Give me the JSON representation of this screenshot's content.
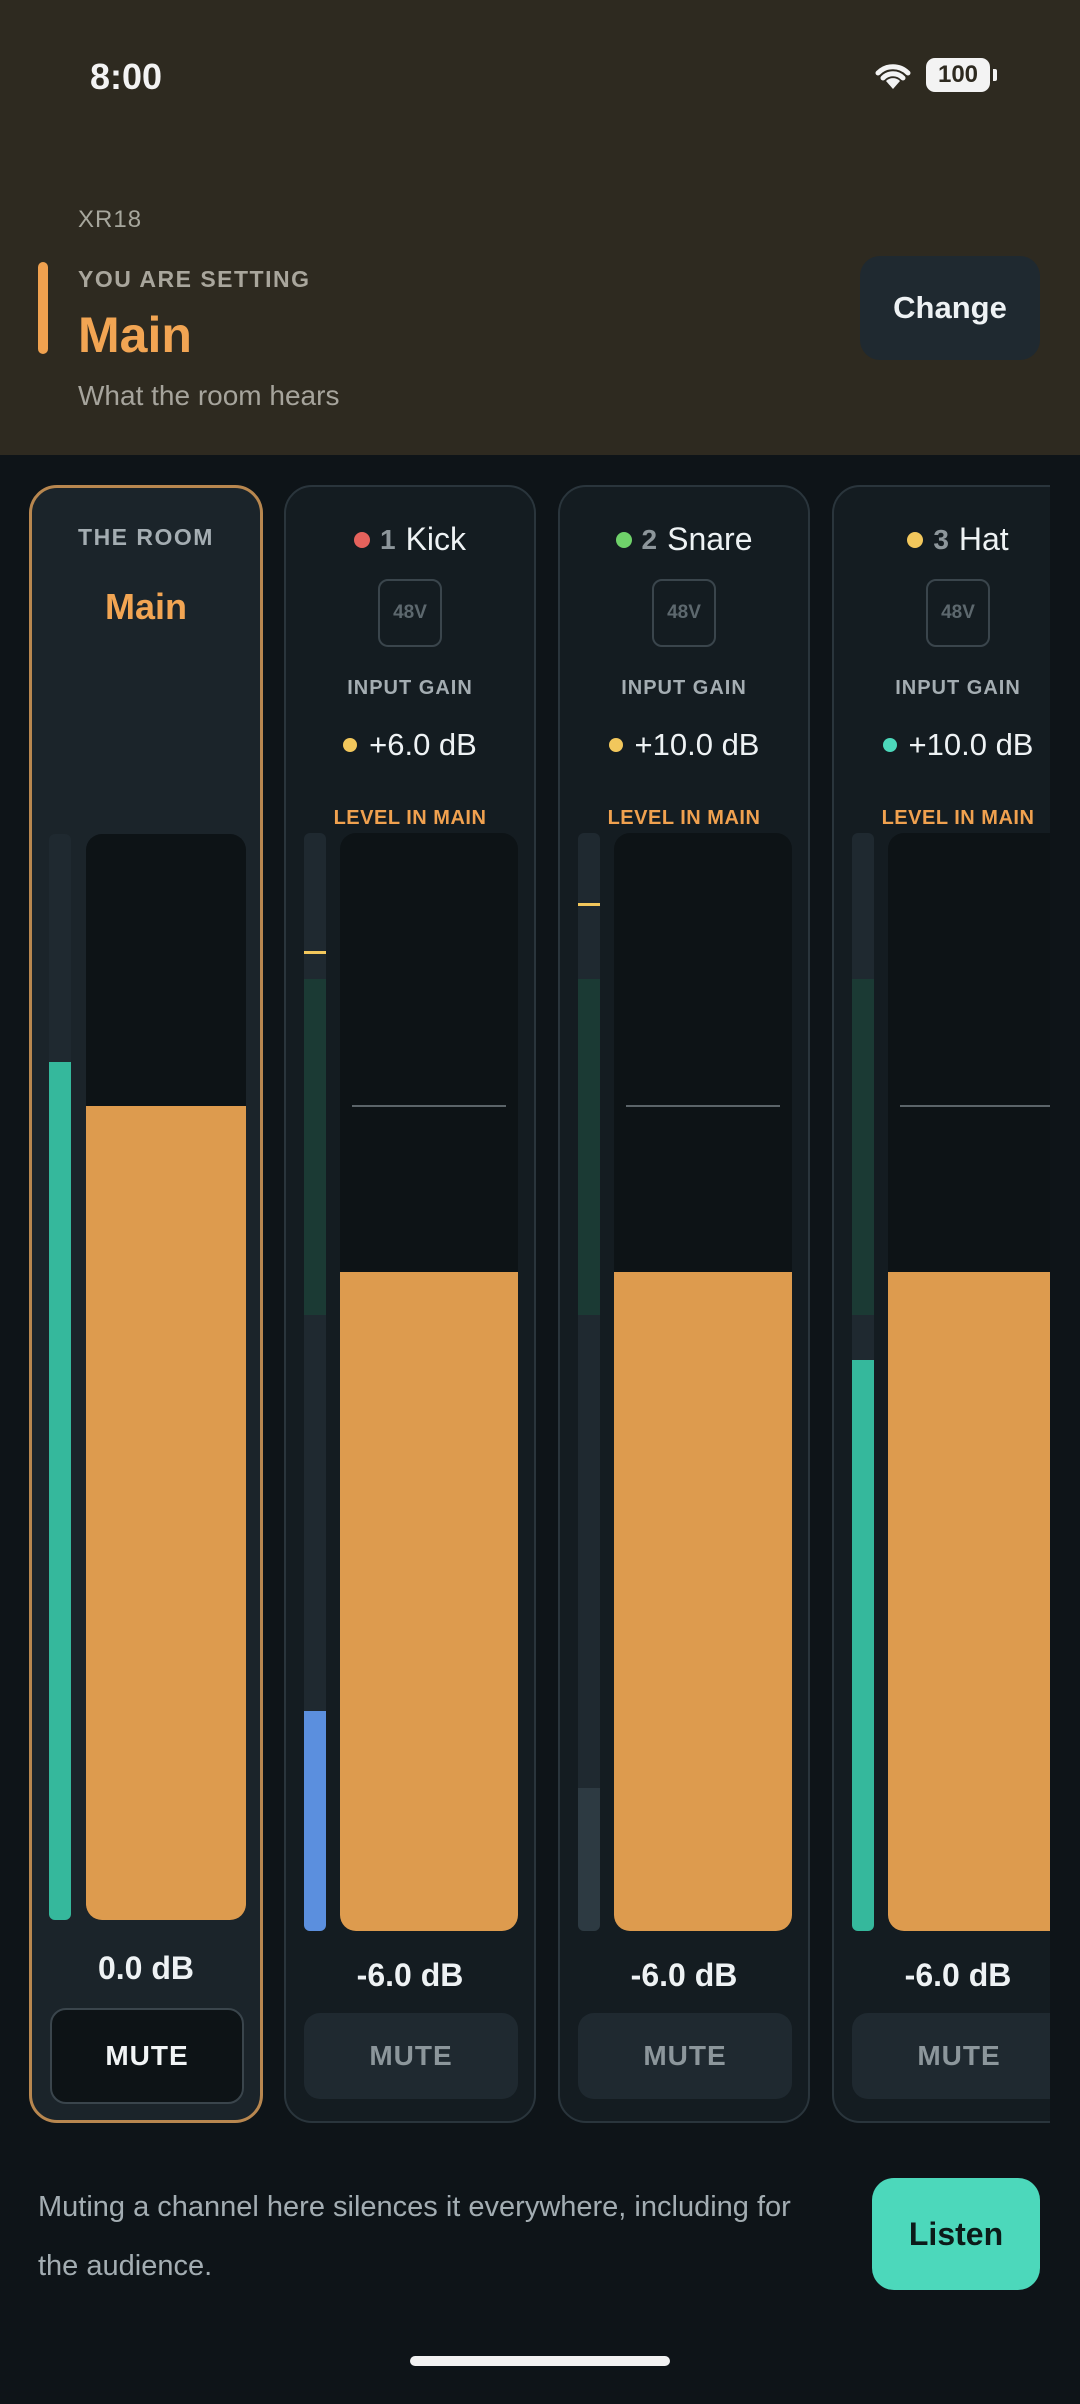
{
  "status": {
    "time": "8:00",
    "battery": "100"
  },
  "header": {
    "device": "XR18",
    "caption": "YOU ARE SETTING",
    "target": "Main",
    "description": "What the room hears",
    "change_label": "Change"
  },
  "room": {
    "label": "THE ROOM",
    "name": "Main",
    "level": "0.0 dB",
    "mute_label": "MUTE",
    "meter_level": 0.79,
    "fader_level": 0.75
  },
  "channels": [
    {
      "number": "1",
      "name": "Kick",
      "dot_color": "#e5625c",
      "phantom": "48V",
      "gain_label": "INPUT GAIN",
      "gain": "+6.0 dB",
      "gain_dot_color": "#f2c75c",
      "level_label": "LEVEL IN MAIN",
      "level": "-6.0 dB",
      "mute_label": "MUTE",
      "meter_color": "#5b8fde",
      "meter_level": 0.2,
      "fader_level": 0.6
    },
    {
      "number": "2",
      "name": "Snare",
      "dot_color": "#6fd16a",
      "phantom": "48V",
      "gain_label": "INPUT GAIN",
      "gain": "+10.0 dB",
      "gain_dot_color": "#f2c75c",
      "level_label": "LEVEL IN MAIN",
      "level": "-6.0 dB",
      "mute_label": "MUTE",
      "meter_color": "#2d3a42",
      "meter_level": 0.13,
      "fader_level": 0.6
    },
    {
      "number": "3",
      "name": "Hat",
      "dot_color": "#f2c75c",
      "phantom": "48V",
      "gain_label": "INPUT GAIN",
      "gain": "+10.0 dB",
      "gain_dot_color": "#4cd8bb",
      "level_label": "LEVEL IN MAIN",
      "level": "-6.0 dB",
      "mute_label": "MUTE",
      "meter_color": "#35b89c",
      "meter_level": 0.52,
      "fader_level": 0.6
    }
  ],
  "footer": {
    "note": "Muting a channel here silences it everywhere, including for the audience.",
    "listen_label": "Listen"
  },
  "colors": {
    "accent": "#f2a553",
    "fader": "#dd9b4e",
    "teal": "#4cd8bb",
    "header_bg": "#2e2a20",
    "bg": "#0e1418"
  }
}
